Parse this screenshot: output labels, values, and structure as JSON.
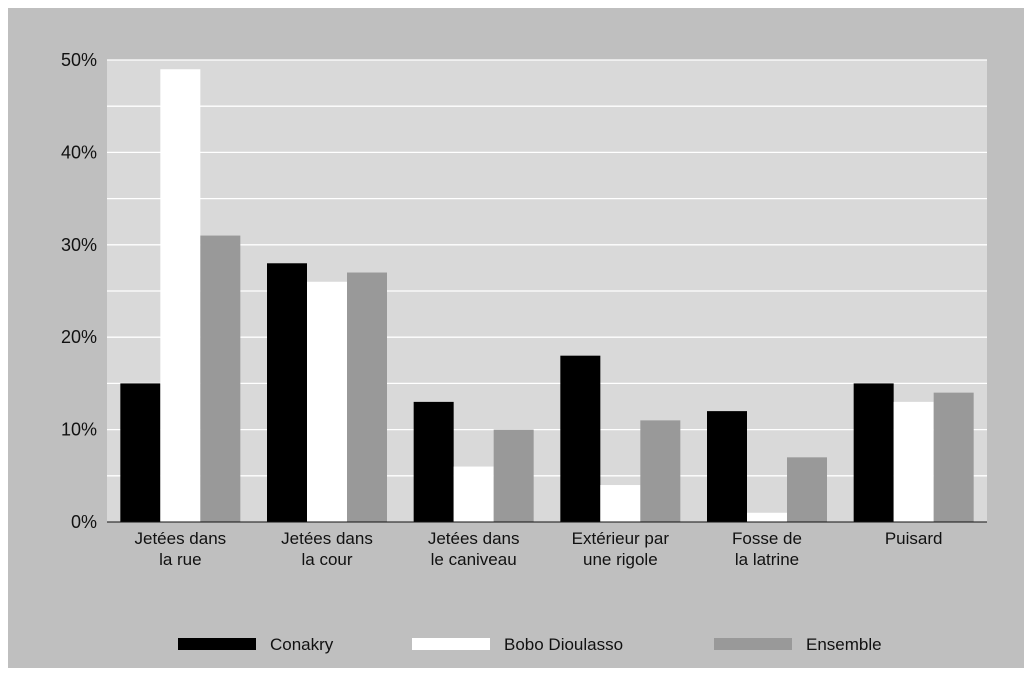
{
  "chart_data": {
    "type": "bar",
    "title": "",
    "xlabel": "",
    "ylabel": "",
    "ylim": [
      0,
      50
    ],
    "y_ticks": [
      0,
      10,
      20,
      30,
      40,
      50
    ],
    "y_tick_labels": [
      "0%",
      "10%",
      "20%",
      "30%",
      "40%",
      "50%"
    ],
    "grid": true,
    "legend_position": "bottom",
    "categories": [
      [
        "Jetées dans",
        "la rue"
      ],
      [
        "Jetées dans",
        "la cour"
      ],
      [
        "Jetées dans",
        "le caniveau"
      ],
      [
        "Extérieur par",
        "une rigole"
      ],
      [
        "Fosse de",
        "la latrine"
      ],
      [
        "Puisard"
      ]
    ],
    "series": [
      {
        "name": "Conakry",
        "color": "#000000",
        "values": [
          15,
          28,
          13,
          18,
          12,
          15
        ]
      },
      {
        "name": "Bobo Dioulasso",
        "color": "#ffffff",
        "values": [
          49,
          26,
          6,
          4,
          1,
          13
        ]
      },
      {
        "name": "Ensemble",
        "color": "#999999",
        "values": [
          31,
          27,
          10,
          11,
          7,
          14
        ]
      }
    ],
    "colors": {
      "plot_background": "#d9d9d9",
      "outer_background": "#bfbfbf",
      "gridline": "#ffffff"
    }
  }
}
